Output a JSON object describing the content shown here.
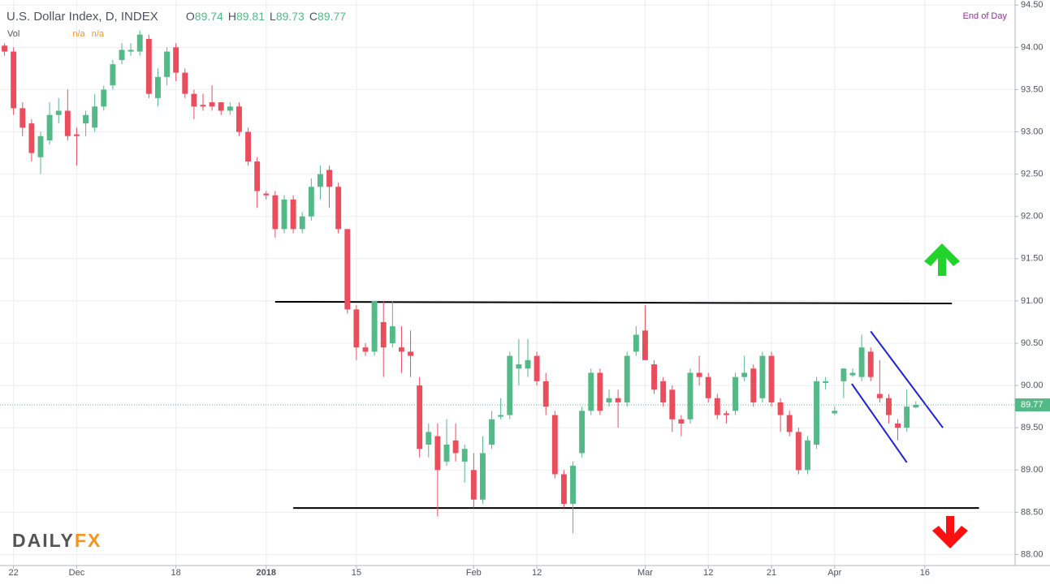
{
  "chart_data": {
    "type": "candlestick",
    "title": "U.S. Dollar Index, D, INDEX",
    "header_values": [
      {
        "label": "O",
        "value": "89.74"
      },
      {
        "label": "H",
        "value": "89.81"
      },
      {
        "label": "L",
        "value": "89.73"
      },
      {
        "label": "C",
        "value": "89.77"
      }
    ],
    "volume_label": "Vol",
    "volume_values": [
      "n/a",
      "n/a"
    ],
    "status": "End of Day",
    "logo": [
      "DAILY",
      "FX"
    ],
    "up_color": "#53b987",
    "down_color": "#eb4d5c",
    "ohlc": [
      [
        94.02,
        94.05,
        93.9,
        93.95
      ],
      [
        93.95,
        94.0,
        93.2,
        93.28
      ],
      [
        93.28,
        93.35,
        92.95,
        93.05
      ],
      [
        93.1,
        93.15,
        92.65,
        92.75
      ],
      [
        92.7,
        93.0,
        92.5,
        92.95
      ],
      [
        92.9,
        93.35,
        92.85,
        93.2
      ],
      [
        93.2,
        93.4,
        93.1,
        93.25
      ],
      [
        93.25,
        93.5,
        92.9,
        92.95
      ],
      [
        92.97,
        93.05,
        92.6,
        92.95
      ],
      [
        93.1,
        93.25,
        92.95,
        93.2
      ],
      [
        93.05,
        93.45,
        93.0,
        93.3
      ],
      [
        93.3,
        93.55,
        93.25,
        93.5
      ],
      [
        93.55,
        93.85,
        93.5,
        93.8
      ],
      [
        93.85,
        94.05,
        93.8,
        93.97
      ],
      [
        93.95,
        94.05,
        93.9,
        93.97
      ],
      [
        93.95,
        94.2,
        93.9,
        94.15
      ],
      [
        94.1,
        94.15,
        93.4,
        93.45
      ],
      [
        93.4,
        93.75,
        93.3,
        93.65
      ],
      [
        93.65,
        94.0,
        93.55,
        93.95
      ],
      [
        94.0,
        94.05,
        93.6,
        93.7
      ],
      [
        93.7,
        93.75,
        93.4,
        93.45
      ],
      [
        93.45,
        93.5,
        93.15,
        93.3
      ],
      [
        93.32,
        93.45,
        93.25,
        93.3
      ],
      [
        93.35,
        93.55,
        93.25,
        93.3
      ],
      [
        93.35,
        93.35,
        93.2,
        93.25
      ],
      [
        93.25,
        93.35,
        93.2,
        93.3
      ],
      [
        93.3,
        93.35,
        92.95,
        93.0
      ],
      [
        93.0,
        93.05,
        92.6,
        92.65
      ],
      [
        92.65,
        92.7,
        92.1,
        92.3
      ],
      [
        92.27,
        92.3,
        92.2,
        92.25
      ],
      [
        92.25,
        92.3,
        91.75,
        91.85
      ],
      [
        91.85,
        92.25,
        91.8,
        92.2
      ],
      [
        92.2,
        92.25,
        91.8,
        91.85
      ],
      [
        91.85,
        92.05,
        91.8,
        92.0
      ],
      [
        92.0,
        92.45,
        91.95,
        92.35
      ],
      [
        92.35,
        92.6,
        92.2,
        92.5
      ],
      [
        92.55,
        92.6,
        92.1,
        92.35
      ],
      [
        92.35,
        92.4,
        91.8,
        91.85
      ],
      [
        91.85,
        91.85,
        90.85,
        90.9
      ],
      [
        90.9,
        90.95,
        90.3,
        90.45
      ],
      [
        90.45,
        90.5,
        90.35,
        90.4
      ],
      [
        90.4,
        91.0,
        90.35,
        91.0
      ],
      [
        90.75,
        91.0,
        90.1,
        90.45
      ],
      [
        90.5,
        91.0,
        90.45,
        90.7
      ],
      [
        90.45,
        90.7,
        90.15,
        90.4
      ],
      [
        90.4,
        90.65,
        90.1,
        90.35
      ],
      [
        90.0,
        90.1,
        89.15,
        89.25
      ],
      [
        89.3,
        89.55,
        89.15,
        89.45
      ],
      [
        89.4,
        89.55,
        88.45,
        89.0
      ],
      [
        89.1,
        89.6,
        89.05,
        89.3
      ],
      [
        89.35,
        89.55,
        89.1,
        89.2
      ],
      [
        89.1,
        89.3,
        88.85,
        89.25
      ],
      [
        89.0,
        89.2,
        88.55,
        88.65
      ],
      [
        88.65,
        89.4,
        88.6,
        89.2
      ],
      [
        89.3,
        89.7,
        89.25,
        89.6
      ],
      [
        89.63,
        89.85,
        89.6,
        89.65
      ],
      [
        89.65,
        90.4,
        89.6,
        90.35
      ],
      [
        90.2,
        90.55,
        90.0,
        90.25
      ],
      [
        90.2,
        90.55,
        90.1,
        90.3
      ],
      [
        90.35,
        90.4,
        90.0,
        90.05
      ],
      [
        90.05,
        90.15,
        89.65,
        89.75
      ],
      [
        89.65,
        89.7,
        88.9,
        88.95
      ],
      [
        88.95,
        89.0,
        88.55,
        88.6
      ],
      [
        88.6,
        89.1,
        88.25,
        89.05
      ],
      [
        89.2,
        89.75,
        89.15,
        89.7
      ],
      [
        89.7,
        90.2,
        89.65,
        90.15
      ],
      [
        90.15,
        90.2,
        89.65,
        89.7
      ],
      [
        89.8,
        89.95,
        89.75,
        89.85
      ],
      [
        89.85,
        89.95,
        89.5,
        89.8
      ],
      [
        89.8,
        90.4,
        89.75,
        90.35
      ],
      [
        90.4,
        90.7,
        90.35,
        90.6
      ],
      [
        90.65,
        90.95,
        90.3,
        90.3
      ],
      [
        90.25,
        90.3,
        89.9,
        89.95
      ],
      [
        90.05,
        90.1,
        89.75,
        89.8
      ],
      [
        89.95,
        90.0,
        89.45,
        89.6
      ],
      [
        89.6,
        89.65,
        89.4,
        89.55
      ],
      [
        89.6,
        90.2,
        89.55,
        90.15
      ],
      [
        90.15,
        90.35,
        90.0,
        90.1
      ],
      [
        90.1,
        90.15,
        89.8,
        89.85
      ],
      [
        89.85,
        89.9,
        89.6,
        89.65
      ],
      [
        89.67,
        89.7,
        89.55,
        89.65
      ],
      [
        89.7,
        90.15,
        89.65,
        90.1
      ],
      [
        90.1,
        90.35,
        90.05,
        90.15
      ],
      [
        90.2,
        90.25,
        89.75,
        89.8
      ],
      [
        89.85,
        90.4,
        89.8,
        90.35
      ],
      [
        90.35,
        90.4,
        89.75,
        89.8
      ],
      [
        89.8,
        89.85,
        89.45,
        89.65
      ],
      [
        89.65,
        89.7,
        89.4,
        89.45
      ],
      [
        89.45,
        89.5,
        88.95,
        89.0
      ],
      [
        89.0,
        89.4,
        88.95,
        89.35
      ],
      [
        89.3,
        90.1,
        89.25,
        90.05
      ],
      [
        90.03,
        90.1,
        89.95,
        90.05
      ],
      [
        89.67,
        89.75,
        89.65,
        89.7
      ],
      [
        90.05,
        90.2,
        89.85,
        90.2
      ],
      [
        90.12,
        90.2,
        90.1,
        90.15
      ],
      [
        90.1,
        90.6,
        90.05,
        90.45
      ],
      [
        90.4,
        90.45,
        90.05,
        90.1
      ],
      [
        89.9,
        90.3,
        89.8,
        89.85
      ],
      [
        89.85,
        89.9,
        89.55,
        89.65
      ],
      [
        89.55,
        89.6,
        89.35,
        89.5
      ],
      [
        89.5,
        89.95,
        89.45,
        89.75
      ],
      [
        89.74,
        89.81,
        89.73,
        89.77
      ]
    ],
    "last_price": 89.77,
    "last_price_color": "#53b987",
    "xlim": [
      -0.5,
      112
    ],
    "xticks": [
      {
        "value": 1,
        "label": "22"
      },
      {
        "value": 8,
        "label": "Dec"
      },
      {
        "value": 19,
        "label": "18"
      },
      {
        "value": 29,
        "label": "2018",
        "bold": true
      },
      {
        "value": 39,
        "label": "15"
      },
      {
        "value": 52,
        "label": "Feb"
      },
      {
        "value": 59,
        "label": "12"
      },
      {
        "value": 71,
        "label": "Mar"
      },
      {
        "value": 78,
        "label": "12"
      },
      {
        "value": 85,
        "label": "21"
      },
      {
        "value": 92,
        "label": "Apr"
      },
      {
        "value": 102,
        "label": "16"
      }
    ],
    "ylim": [
      87.87,
      94.56
    ],
    "yticks": [
      {
        "value": 88,
        "label": "88.00"
      },
      {
        "value": 88.5,
        "label": "88.50"
      },
      {
        "value": 89,
        "label": "89.00"
      },
      {
        "value": 89.5,
        "label": "89.50"
      },
      {
        "value": 90,
        "label": "90.00"
      },
      {
        "value": 90.5,
        "label": "90.50"
      },
      {
        "value": 91,
        "label": "91.00"
      },
      {
        "value": 91.5,
        "label": "91.50"
      },
      {
        "value": 92,
        "label": "92.00"
      },
      {
        "value": 92.5,
        "label": "92.50"
      },
      {
        "value": 93,
        "label": "93.00"
      },
      {
        "value": 93.5,
        "label": "93.50"
      },
      {
        "value": 94,
        "label": "94.00"
      },
      {
        "value": 94.5,
        "label": "94.50"
      }
    ],
    "grid": true,
    "trendlines": [
      {
        "color": "#000000",
        "x": [
          30,
          105
        ],
        "y": [
          90.99,
          90.97
        ]
      },
      {
        "color": "#000000",
        "x": [
          32,
          108
        ],
        "y": [
          88.55,
          88.55
        ]
      },
      {
        "color": "#1f22d6",
        "x": [
          96,
          104
        ],
        "y": [
          90.64,
          89.5
        ]
      },
      {
        "color": "#1f22d6",
        "x": [
          93.9,
          100
        ],
        "y": [
          90.02,
          89.09
        ]
      }
    ]
  }
}
